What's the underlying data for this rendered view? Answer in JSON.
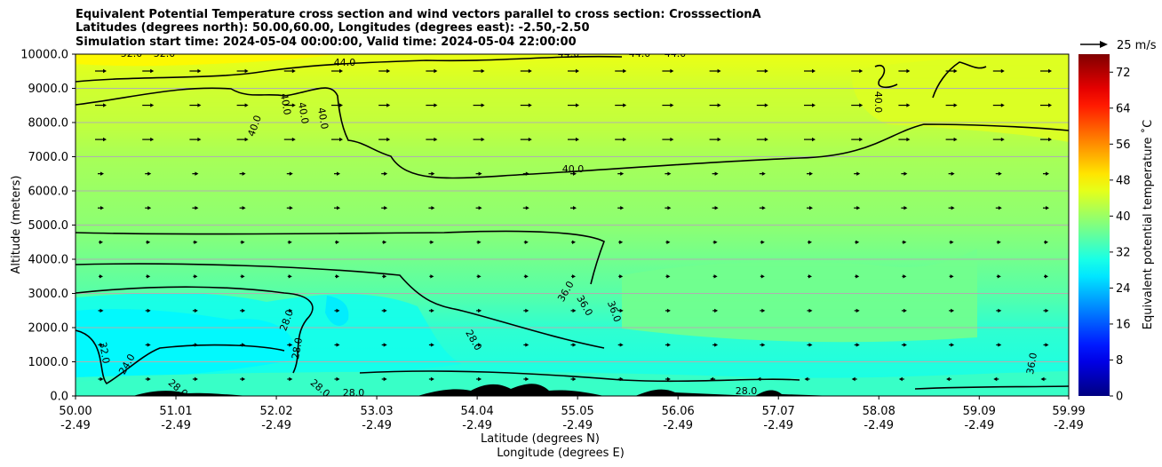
{
  "titles": {
    "line1": "Equivalent Potential Temperature cross section and wind vectors parallel to cross section: CrosssectionA",
    "line2": "Latitudes (degrees north): 50.00,60.00, Longitudes (degrees east): -2.50,-2.50",
    "line3": "Simulation start time: 2024-05-04 00:00:00, Valid time: 2024-05-04 22:00:00"
  },
  "chart_data": {
    "type": "heatmap",
    "subtype": "filled contour cross section with wind vectors",
    "ylabel": "Altitude (meters)",
    "xlabel_lat": "Latitude (degrees N)",
    "xlabel_lon": "Longitude (degrees E)",
    "ylim": [
      0,
      10000
    ],
    "yticks": [
      "0.0",
      "1000.0",
      "2000.0",
      "3000.0",
      "4000.0",
      "5000.0",
      "6000.0",
      "7000.0",
      "8000.0",
      "9000.0",
      "10000.0"
    ],
    "ytick_values": [
      0,
      1000,
      2000,
      3000,
      4000,
      5000,
      6000,
      7000,
      8000,
      9000,
      10000
    ],
    "xlim": [
      50.0,
      59.99
    ],
    "xtick_values": [
      50.0,
      51.01,
      52.02,
      53.03,
      54.04,
      55.05,
      56.06,
      57.07,
      58.08,
      59.09,
      59.99
    ],
    "xtick_lat": [
      "50.00",
      "51.01",
      "52.02",
      "53.03",
      "54.04",
      "55.05",
      "56.06",
      "57.07",
      "58.08",
      "59.09",
      "59.99"
    ],
    "xtick_lon": [
      "-2.49",
      "-2.49",
      "-2.49",
      "-2.49",
      "-2.49",
      "-2.49",
      "-2.49",
      "-2.49",
      "-2.49",
      "-2.49",
      "-2.49"
    ],
    "grid": true,
    "colorbar": {
      "label": "Equivalent potential temperature ˚C",
      "range": [
        0,
        76
      ],
      "ticks": [
        "0",
        "8",
        "16",
        "24",
        "32",
        "40",
        "48",
        "56",
        "64",
        "72"
      ],
      "tick_values": [
        0,
        8,
        16,
        24,
        32,
        40,
        48,
        56,
        64,
        72
      ]
    },
    "quiver_key": "25 m/s",
    "theta_e_layers": [
      {
        "alt": 0,
        "value": 30
      },
      {
        "alt": 1000,
        "value": 31
      },
      {
        "alt": 2000,
        "value": 32
      },
      {
        "alt": 3000,
        "value": 35
      },
      {
        "alt": 4000,
        "value": 37
      },
      {
        "alt": 5000,
        "value": 39
      },
      {
        "alt": 6000,
        "value": 40
      },
      {
        "alt": 7000,
        "value": 41
      },
      {
        "alt": 8000,
        "value": 43
      },
      {
        "alt": 9000,
        "value": 44
      },
      {
        "alt": 10000,
        "value": 46
      }
    ],
    "contour_labels": [
      "52.0",
      "52.0",
      "44.0",
      "44.0",
      "44.0",
      "44.0",
      "40.0",
      "40.0",
      "40.0",
      "40.0",
      "40.0",
      "40.0",
      "36.0",
      "36.0",
      "36.0",
      "36.0",
      "32.0",
      "28.0",
      "28.0",
      "28.0",
      "28.0",
      "28.0",
      "28.0",
      "28.0",
      "24.0"
    ]
  }
}
